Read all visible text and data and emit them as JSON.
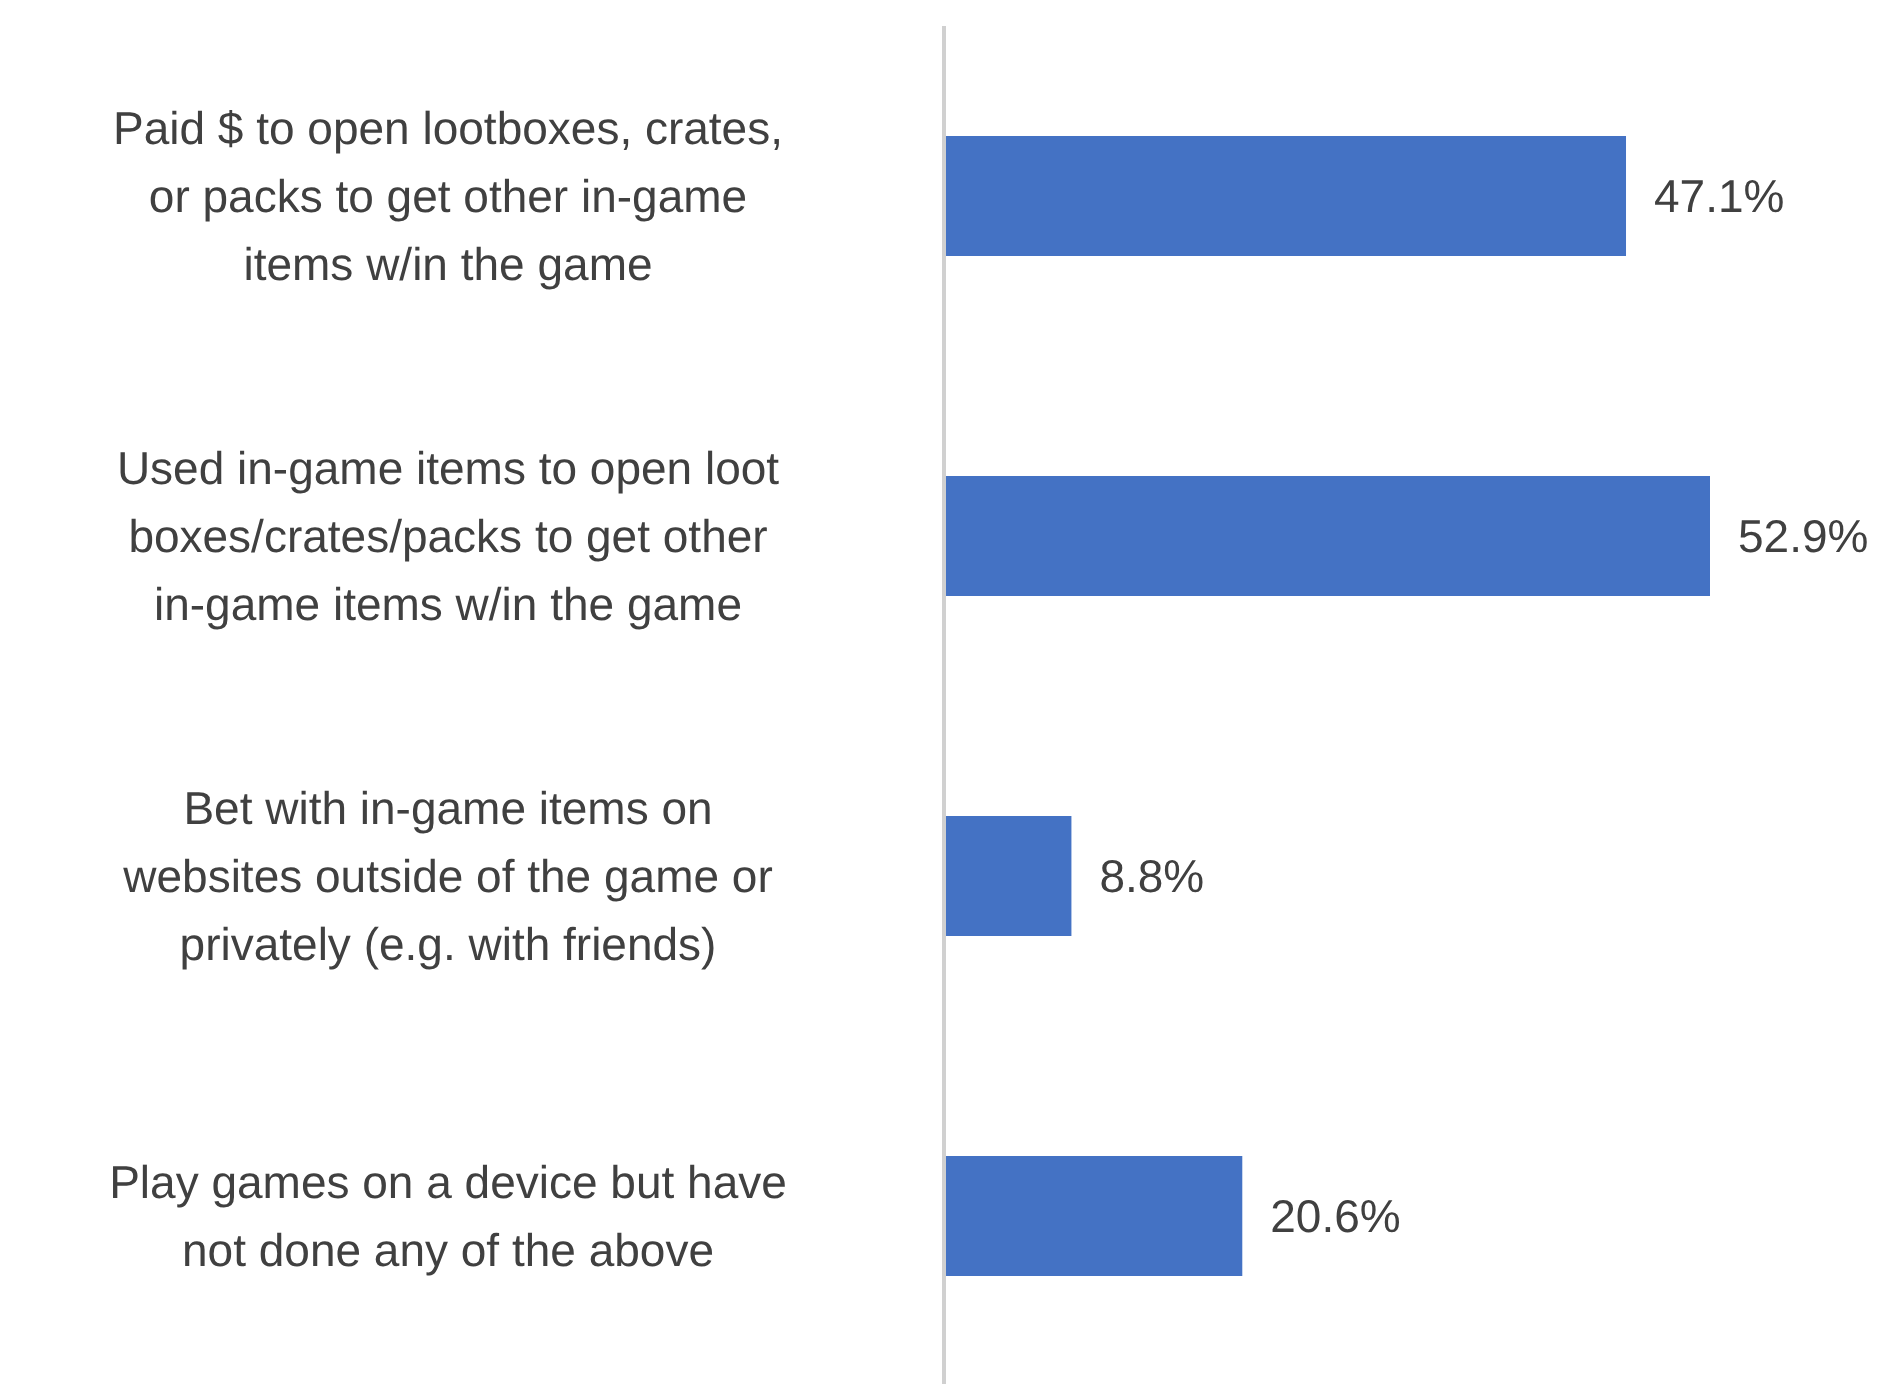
{
  "chart_data": {
    "type": "bar",
    "orientation": "horizontal",
    "categories": [
      "Paid $ to open lootboxes, crates, or packs to get other in-game items w/in the game",
      "Used in-game items to open loot boxes/crates/packs to get other in-game items w/in the game",
      "Bet with in-game items on websites outside of the game or privately (e.g. with friends)",
      "Play games on a device but have not done any of the above"
    ],
    "values": [
      47.1,
      52.9,
      8.8,
      20.6
    ],
    "value_labels": [
      "47.1%",
      "52.9%",
      "8.8%",
      "20.6%"
    ],
    "color": "#4472c4"
  }
}
